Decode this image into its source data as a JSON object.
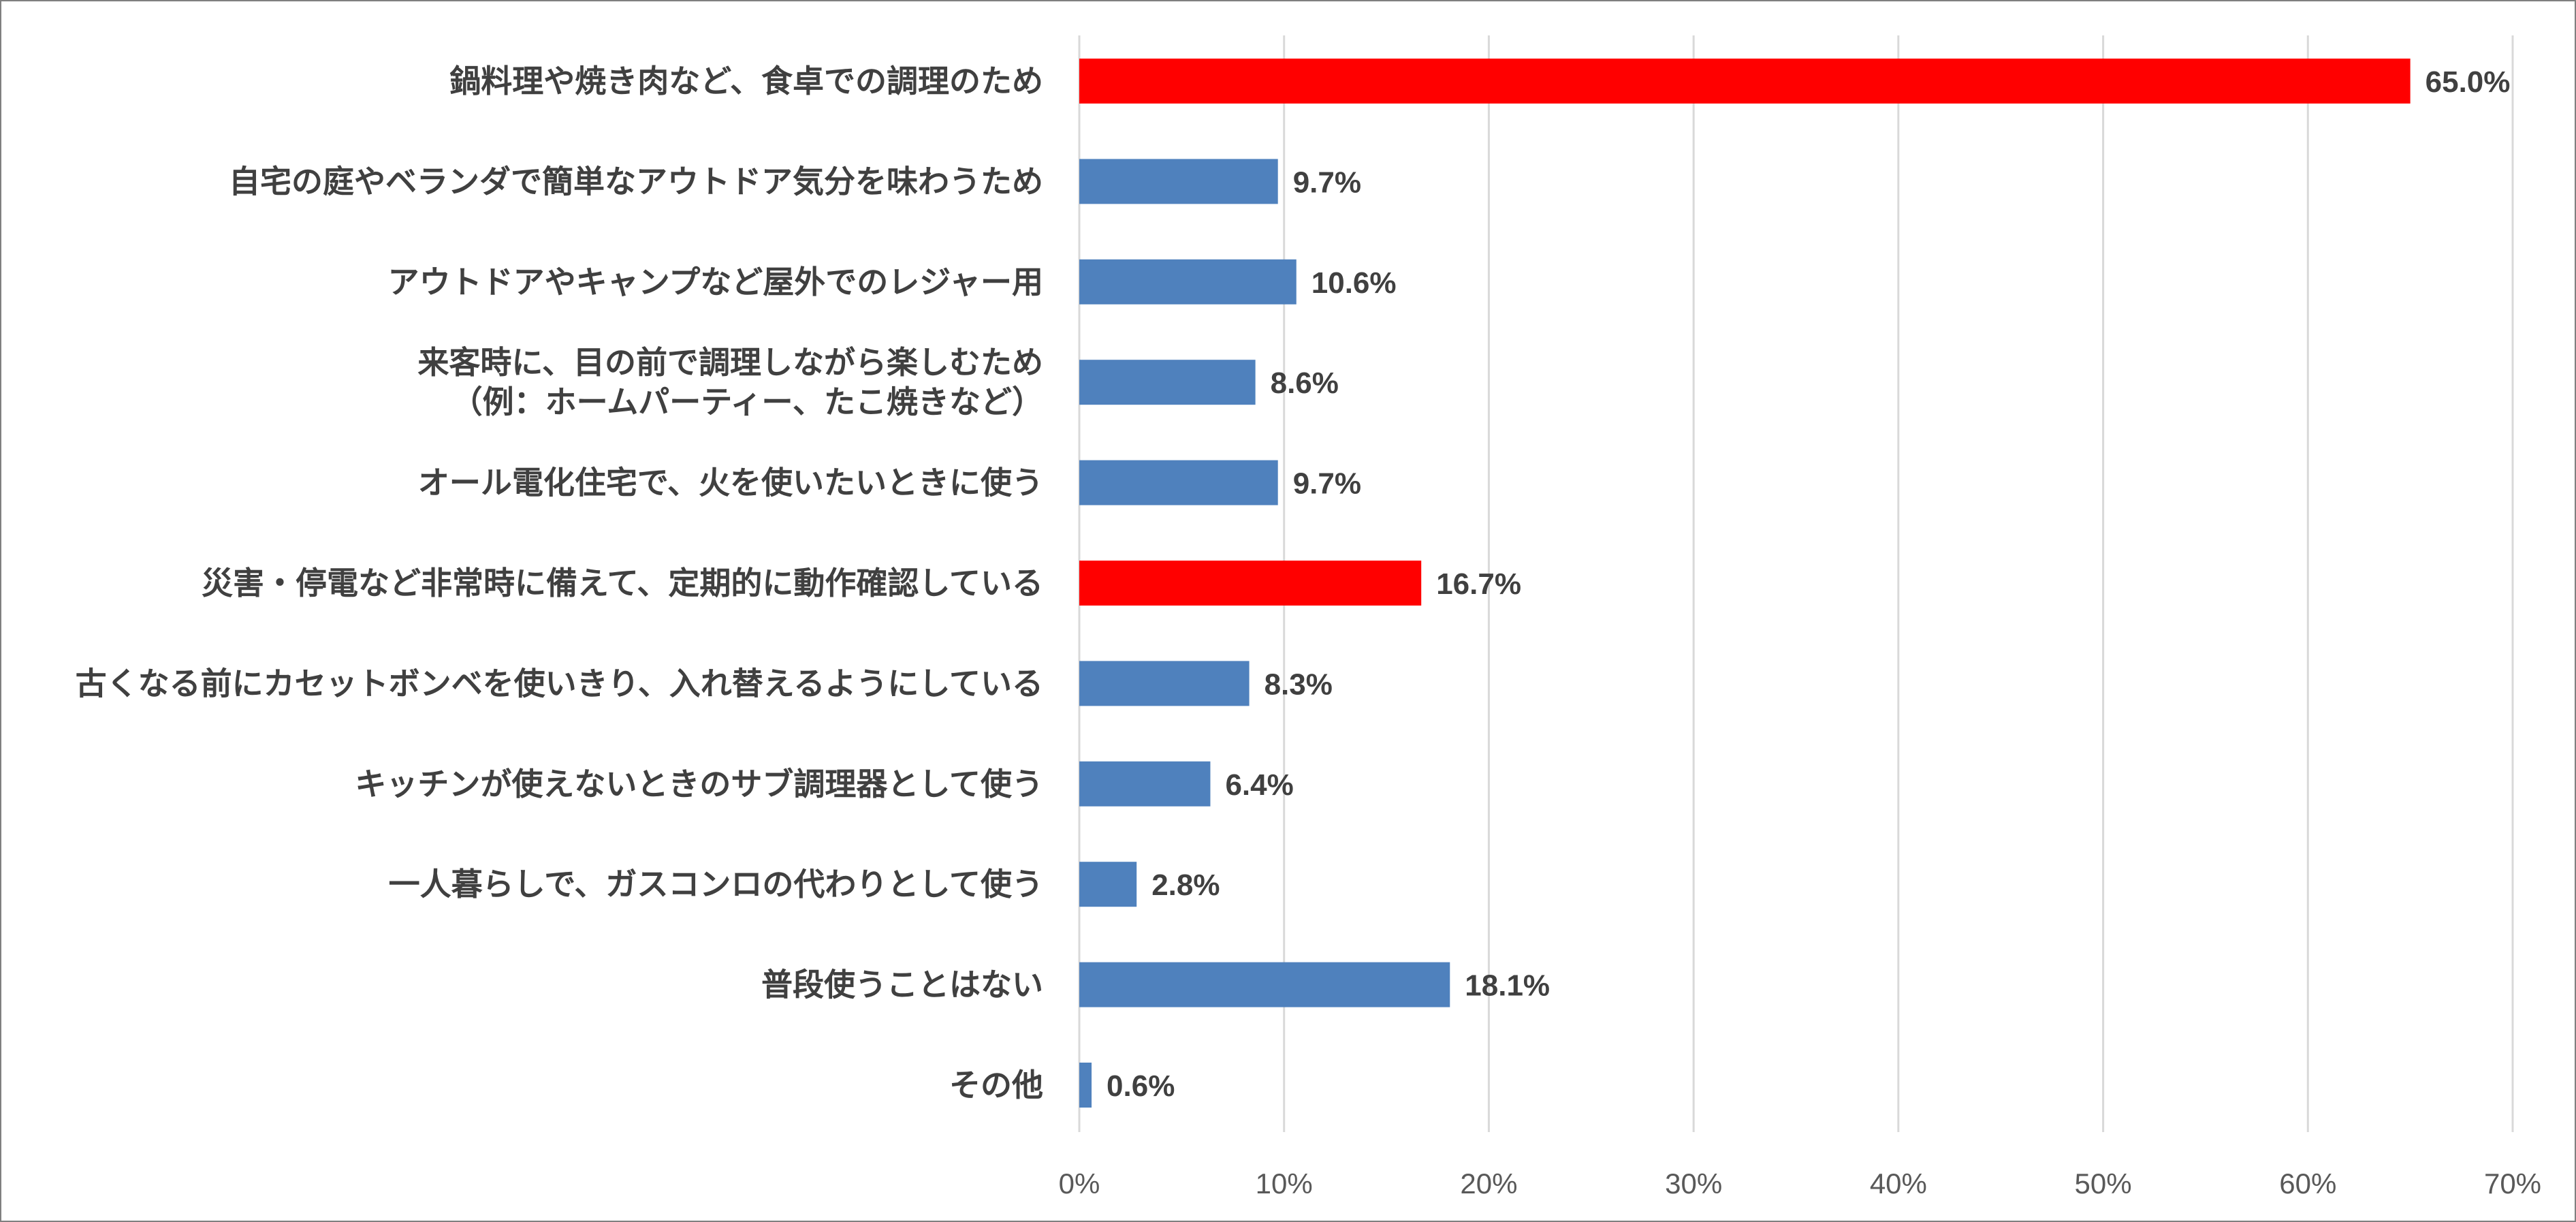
{
  "chart_data": {
    "type": "bar",
    "orientation": "horizontal",
    "title": "",
    "xlabel": "",
    "ylabel": "",
    "categories": [
      [
        "鍋料理や焼き肉など、食卓での調理のため"
      ],
      [
        "自宅の庭やベランダで簡単なアウトドア気分を味わうため"
      ],
      [
        "アウトドアやキャンプなど屋外でのレジャー用"
      ],
      [
        "来客時に、目の前で調理しながら楽しむため",
        "（例：ホームパーティー、たこ焼きなど）"
      ],
      [
        "オール電化住宅で、火を使いたいときに使う"
      ],
      [
        "災害・停電など非常時に備えて、定期的に動作確認している"
      ],
      [
        "古くなる前にカセットボンベを使いきり、入れ替えるようにしている"
      ],
      [
        "キッチンが使えないときのサブ調理器として使う"
      ],
      [
        "一人暮らしで、ガスコンロの代わりとして使う"
      ],
      [
        "普段使うことはない"
      ],
      [
        "その他"
      ]
    ],
    "values": [
      65.0,
      9.7,
      10.6,
      8.6,
      9.7,
      16.7,
      8.3,
      6.4,
      2.8,
      18.1,
      0.6
    ],
    "value_labels": [
      "65.0%",
      "9.7%",
      "10.6%",
      "8.6%",
      "9.7%",
      "16.7%",
      "8.3%",
      "6.4%",
      "2.8%",
      "18.1%",
      "0.6%"
    ],
    "highlighted": [
      true,
      false,
      false,
      false,
      false,
      true,
      false,
      false,
      false,
      false,
      false
    ],
    "xlim": [
      0,
      70
    ],
    "x_ticks": [
      0,
      10,
      20,
      30,
      40,
      50,
      60,
      70
    ],
    "x_tick_labels": [
      "0%",
      "10%",
      "20%",
      "30%",
      "40%",
      "50%",
      "60%",
      "70%"
    ],
    "grid": "vertical",
    "legend": "none",
    "colors": {
      "default_bar": "#4f81bd",
      "highlight_bar": "#ff0000",
      "gridline": "#d9d9d9",
      "text": "#404040"
    }
  }
}
